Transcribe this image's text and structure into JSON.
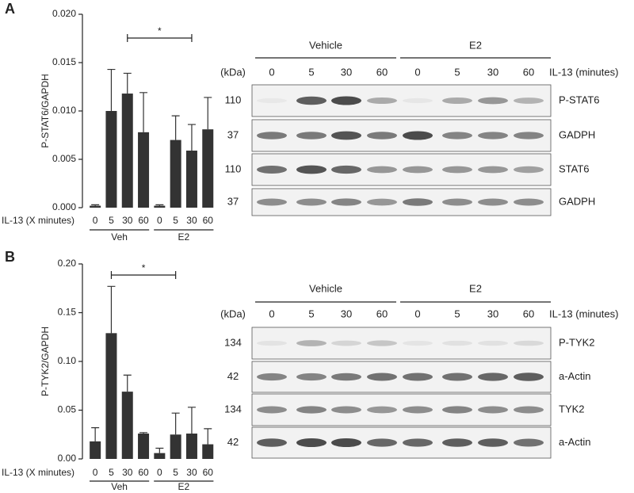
{
  "panel_labels": [
    "A",
    "B"
  ],
  "chart_data": [
    {
      "type": "bar",
      "y_label": "P-STAT6/GAPDH",
      "x_label": "IL-13 (X minutes)",
      "categories": [
        "0",
        "5",
        "30",
        "60",
        "0",
        "5",
        "30",
        "60"
      ],
      "groups": [
        "Veh",
        "E2"
      ],
      "values": [
        0.0002,
        0.01,
        0.0118,
        0.0078,
        0.0002,
        0.007,
        0.0059,
        0.0081
      ],
      "errors": [
        0.0001,
        0.0043,
        0.0021,
        0.0041,
        0.0001,
        0.0025,
        0.0027,
        0.0033
      ],
      "color": "#333333",
      "ylim": [
        0,
        0.02
      ],
      "yticks": [
        {
          "value": 0,
          "label": "0.000"
        },
        {
          "value": 0.005,
          "label": "0.005"
        },
        {
          "value": 0.01,
          "label": "0.010"
        },
        {
          "value": 0.015,
          "label": "0.015"
        },
        {
          "value": 0.02,
          "label": "0.020"
        }
      ],
      "significance": {
        "label": "*",
        "between": [
          2,
          6
        ]
      }
    },
    {
      "type": "bar",
      "y_label": "P-TYK2/GAPDH",
      "x_label": "IL-13 (X minutes)",
      "categories": [
        "0",
        "5",
        "30",
        "60",
        "0",
        "5",
        "30",
        "60"
      ],
      "groups": [
        "Veh",
        "E2"
      ],
      "values": [
        0.018,
        0.129,
        0.069,
        0.026,
        0.006,
        0.025,
        0.026,
        0.015
      ],
      "errors": [
        0.014,
        0.048,
        0.017,
        0.001,
        0.005,
        0.022,
        0.027,
        0.016
      ],
      "color": "#333333",
      "ylim": [
        0,
        0.2
      ],
      "yticks": [
        {
          "value": 0,
          "label": "0.00"
        },
        {
          "value": 0.05,
          "label": "0.05"
        },
        {
          "value": 0.1,
          "label": "0.10"
        },
        {
          "value": 0.15,
          "label": "0.15"
        },
        {
          "value": 0.2,
          "label": "0.20"
        }
      ],
      "significance": {
        "label": "*",
        "between": [
          1,
          5
        ]
      }
    }
  ],
  "blots": [
    {
      "conditions": [
        "Vehicle",
        "E2"
      ],
      "unit_label": "(kDa)",
      "lane_axis_label": "IL-13 (minutes)",
      "lanes": [
        0,
        5,
        30,
        60,
        0,
        5,
        30,
        60
      ],
      "rows": [
        {
          "kda": 110,
          "label": "P-STAT6"
        },
        {
          "kda": 37,
          "label": "GADPH"
        },
        {
          "kda": 110,
          "label": "STAT6"
        },
        {
          "kda": 37,
          "label": "GADPH"
        }
      ]
    },
    {
      "conditions": [
        "Vehicle",
        "E2"
      ],
      "unit_label": "(kDa)",
      "lane_axis_label": "IL-13 (minutes)",
      "lanes": [
        0,
        5,
        30,
        60,
        0,
        5,
        30,
        60
      ],
      "rows": [
        {
          "kda": 134,
          "label": "P-TYK2"
        },
        {
          "kda": 42,
          "label": "a-Actin"
        },
        {
          "kda": 134,
          "label": "TYK2"
        },
        {
          "kda": 42,
          "label": "a-Actin"
        }
      ]
    }
  ]
}
